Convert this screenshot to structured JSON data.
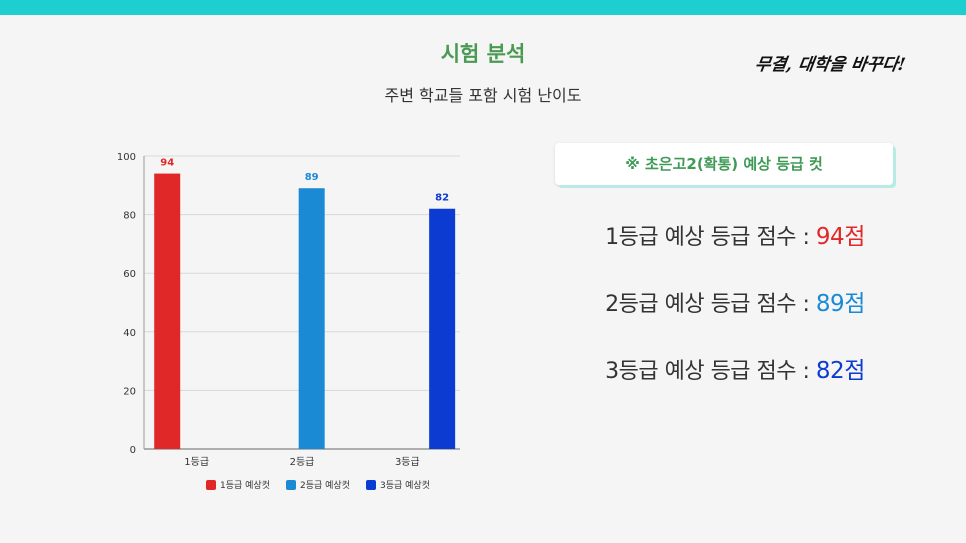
{
  "header": {
    "title": "시험 분석",
    "subtitle": "주변 학교들 포함 시험 난이도",
    "logo_text": "무결, 대학을 바꾸다!"
  },
  "callout": {
    "label": "※ 초은고2(확통) 예상 등급 컷"
  },
  "scores": [
    {
      "label": "1등급 예상 등급 점수 : ",
      "value": "94점",
      "color": "#e02828"
    },
    {
      "label": "2등급 예상 등급 점수 : ",
      "value": "89점",
      "color": "#1a8ad4"
    },
    {
      "label": "3등급 예상 등급 점수 : ",
      "value": "82점",
      "color": "#0b3bd0"
    }
  ],
  "chart_data": {
    "type": "bar",
    "categories": [
      "1등급",
      "2등급",
      "3등급"
    ],
    "series": [
      {
        "name": "1등급 예상컷",
        "values": [
          94,
          null,
          null
        ],
        "color": "#e02828"
      },
      {
        "name": "2등급 예상컷",
        "values": [
          null,
          89,
          null
        ],
        "color": "#1a8ad4"
      },
      {
        "name": "3등급 예상컷",
        "values": [
          null,
          null,
          82
        ],
        "color": "#0b3bd0"
      }
    ],
    "ylim": [
      0,
      100
    ],
    "yticks": [
      0,
      20,
      40,
      60,
      80,
      100
    ],
    "grid": true,
    "legend": "bottom",
    "title": "",
    "xlabel": "",
    "ylabel": ""
  }
}
